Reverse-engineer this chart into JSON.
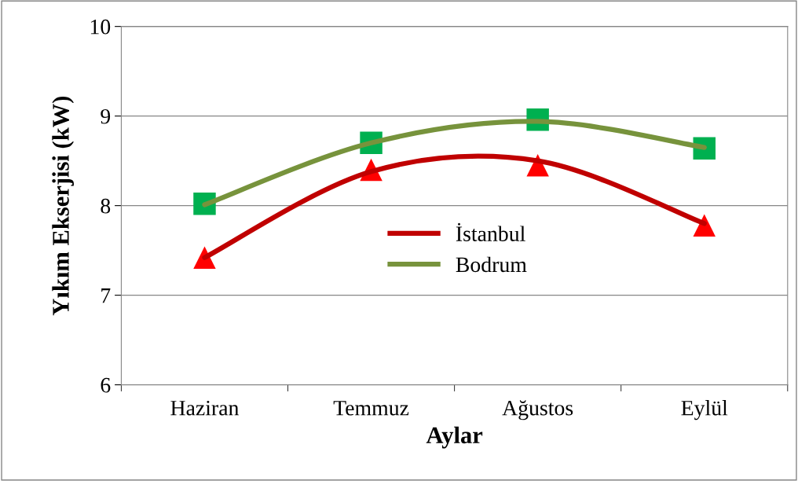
{
  "chart_data": {
    "type": "line",
    "xlabel": "Aylar",
    "ylabel": "Yıkım Ekserjisi (kW)",
    "categories": [
      "Haziran",
      "Temmuz",
      "Ağustos",
      "Eylül"
    ],
    "series": [
      {
        "type": "scatter",
        "color": "#ff0000",
        "marker": "triangle",
        "x": [
          "Haziran",
          "Temmuz",
          "Ağustos",
          "Eylül"
        ],
        "values": [
          7.42,
          8.4,
          8.45,
          7.78
        ]
      },
      {
        "type": "scatter",
        "color": "#00b050",
        "marker": "square",
        "x": [
          "Haziran",
          "Temmuz",
          "Ağustos",
          "Eylül"
        ],
        "values": [
          8.02,
          8.7,
          8.96,
          8.64
        ]
      },
      {
        "type": "line",
        "name": "İstanbul",
        "color": "#c00000",
        "marker": "none",
        "values": [
          7.42,
          8.38,
          8.5,
          7.8
        ]
      },
      {
        "type": "line",
        "name": "Bodrum",
        "color": "#77933c",
        "marker": "none",
        "values": [
          8.01,
          8.7,
          8.94,
          8.65
        ]
      }
    ],
    "ylim": [
      6,
      10
    ],
    "yticks": [
      6,
      7,
      8,
      9,
      10
    ],
    "grid": "y",
    "legend": "center"
  }
}
